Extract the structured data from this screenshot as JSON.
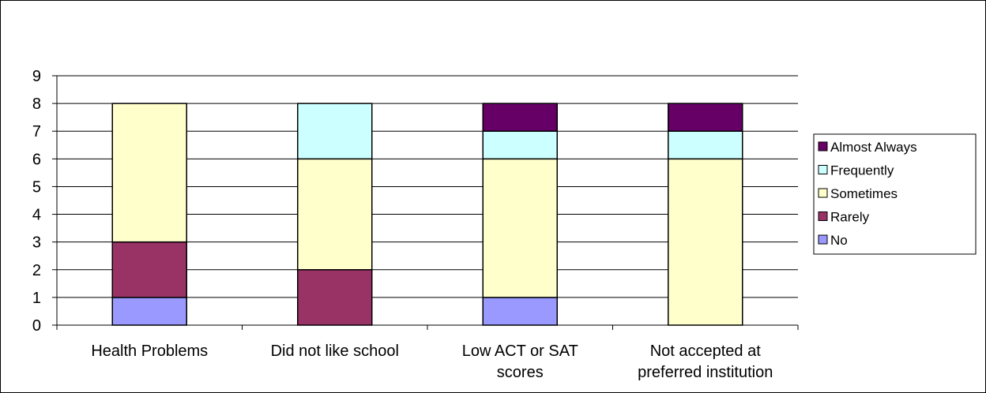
{
  "chart_data": {
    "type": "bar",
    "stacked": true,
    "categories": [
      [
        "Health Problems"
      ],
      [
        "Did not like school"
      ],
      [
        "Low ACT or SAT",
        "scores"
      ],
      [
        "Not accepted at",
        "preferred institution"
      ]
    ],
    "series": [
      {
        "name": "No",
        "color": "#9999FF",
        "values": [
          1,
          0,
          1,
          0
        ]
      },
      {
        "name": "Rarely",
        "color": "#993366",
        "values": [
          2,
          2,
          0,
          0
        ]
      },
      {
        "name": "Sometimes",
        "color": "#FFFFCC",
        "values": [
          5,
          4,
          5,
          6
        ]
      },
      {
        "name": "Frequently",
        "color": "#CCFFFF",
        "values": [
          0,
          2,
          1,
          1
        ]
      },
      {
        "name": "Almost Always",
        "color": "#660066",
        "values": [
          0,
          0,
          1,
          1
        ]
      }
    ],
    "ylim": [
      0,
      9
    ],
    "yticks": [
      0,
      1,
      2,
      3,
      4,
      5,
      6,
      7,
      8,
      9
    ],
    "grid": true,
    "legend_position": "right",
    "legend_order": [
      "Almost Always",
      "Frequently",
      "Sometimes",
      "Rarely",
      "No"
    ]
  }
}
